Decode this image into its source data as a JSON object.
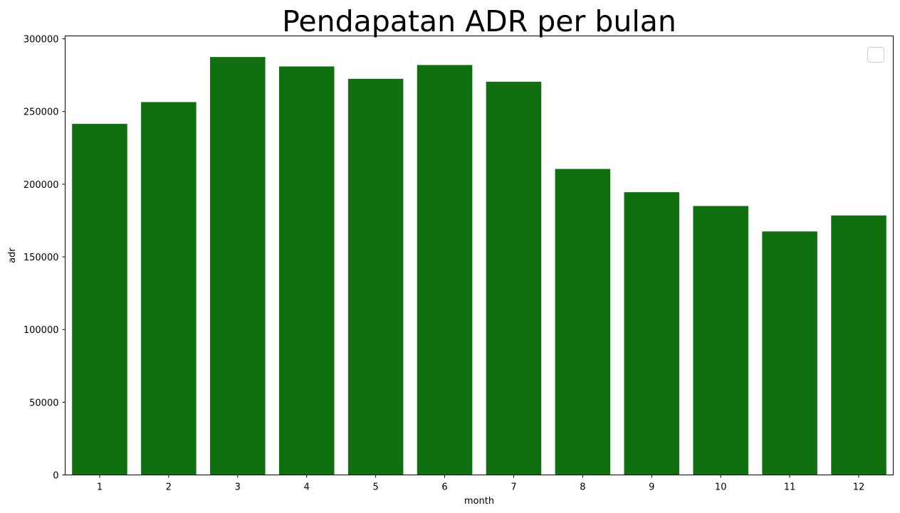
{
  "chart_data": {
    "type": "bar",
    "title": "Pendapatan ADR per bulan",
    "xlabel": "month",
    "ylabel": "adr",
    "categories": [
      "1",
      "2",
      "3",
      "4",
      "5",
      "6",
      "7",
      "8",
      "9",
      "10",
      "11",
      "12"
    ],
    "values": [
      241500,
      256500,
      287500,
      281000,
      272500,
      282000,
      270500,
      210500,
      194500,
      185000,
      167500,
      178500
    ],
    "ylim": [
      0,
      302000
    ],
    "yticks": [
      0,
      50000,
      100000,
      150000,
      200000,
      250000,
      300000
    ],
    "ytick_labels": [
      "0",
      "50000",
      "100000",
      "150000",
      "200000",
      "250000",
      "300000"
    ],
    "bar_color": "#107010",
    "grid": false,
    "legend": {
      "placement": "top-right",
      "entries": []
    }
  }
}
